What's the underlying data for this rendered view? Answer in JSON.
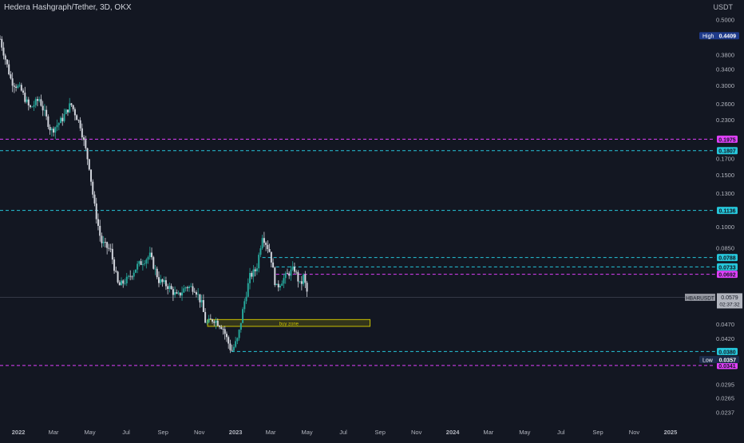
{
  "header": {
    "title": "Hedera Hashgraph/Tether, 3D, OKX",
    "currency": "USDT"
  },
  "colors": {
    "background": "#131722",
    "axis_text": "#b2b5be",
    "bull": "#26a69a",
    "bear": "#d1d4dc",
    "magenta": "#e040fb",
    "cyan": "#26c6da",
    "zone": "#c9c000"
  },
  "chart_data": {
    "type": "candlestick",
    "title": "Hedera Hashgraph/Tether, 3D, OKX",
    "y_scale": "log",
    "ylim": [
      0.0225,
      0.54
    ],
    "y_ticks": [
      0.5,
      0.38,
      0.34,
      0.3,
      0.26,
      0.23,
      0.17,
      0.15,
      0.13,
      0.1,
      0.085,
      0.047,
      0.042,
      0.0295,
      0.0265,
      0.0237
    ],
    "y_tick_labels": [
      "0.5000",
      "0.3800",
      "0.3400",
      "0.3000",
      "0.2600",
      "0.2300",
      "0.1700",
      "0.1500",
      "0.1300",
      "0.1000",
      "0.0850",
      "0.0470",
      "0.0420",
      "0.0295",
      "0.0265",
      "0.0237"
    ],
    "x_ticks": [
      "2022",
      "Mar",
      "May",
      "Jul",
      "Sep",
      "Nov",
      "2023",
      "Mar",
      "May",
      "Jul",
      "Sep",
      "Nov",
      "2024",
      "Mar",
      "May",
      "Jul",
      "Sep",
      "Nov",
      "2025"
    ],
    "x_range": [
      "2021-12-01",
      "2025-02-05"
    ],
    "x_tick_dates": [
      "2022-01-01",
      "2022-03-01",
      "2022-05-01",
      "2022-07-01",
      "2022-09-01",
      "2022-11-01",
      "2023-01-01",
      "2023-03-01",
      "2023-05-01",
      "2023-07-01",
      "2023-09-01",
      "2023-11-01",
      "2024-01-01",
      "2024-03-01",
      "2024-05-01",
      "2024-07-01",
      "2024-09-01",
      "2024-11-01",
      "2025-01-01"
    ],
    "price_path": [
      {
        "date": "2021-12-01",
        "close": 0.43
      },
      {
        "date": "2021-12-20",
        "close": 0.31
      },
      {
        "date": "2022-01-05",
        "close": 0.29
      },
      {
        "date": "2022-01-20",
        "close": 0.25
      },
      {
        "date": "2022-02-05",
        "close": 0.27
      },
      {
        "date": "2022-02-25",
        "close": 0.21
      },
      {
        "date": "2022-03-15",
        "close": 0.23
      },
      {
        "date": "2022-03-30",
        "close": 0.26
      },
      {
        "date": "2022-04-15",
        "close": 0.22
      },
      {
        "date": "2022-04-30",
        "close": 0.16
      },
      {
        "date": "2022-05-08",
        "close": 0.12
      },
      {
        "date": "2022-05-20",
        "close": 0.089
      },
      {
        "date": "2022-06-05",
        "close": 0.083
      },
      {
        "date": "2022-06-18",
        "close": 0.063
      },
      {
        "date": "2022-07-05",
        "close": 0.067
      },
      {
        "date": "2022-07-20",
        "close": 0.074
      },
      {
        "date": "2022-08-10",
        "close": 0.08
      },
      {
        "date": "2022-08-25",
        "close": 0.066
      },
      {
        "date": "2022-09-10",
        "close": 0.063
      },
      {
        "date": "2022-09-25",
        "close": 0.058
      },
      {
        "date": "2022-10-10",
        "close": 0.063
      },
      {
        "date": "2022-10-25",
        "close": 0.062
      },
      {
        "date": "2022-11-05",
        "close": 0.055
      },
      {
        "date": "2022-11-12",
        "close": 0.047
      },
      {
        "date": "2022-11-25",
        "close": 0.049
      },
      {
        "date": "2022-12-10",
        "close": 0.046
      },
      {
        "date": "2022-12-25",
        "close": 0.038
      },
      {
        "date": "2023-01-05",
        "close": 0.042
      },
      {
        "date": "2023-01-15",
        "close": 0.055
      },
      {
        "date": "2023-01-25",
        "close": 0.068
      },
      {
        "date": "2023-02-05",
        "close": 0.072
      },
      {
        "date": "2023-02-15",
        "close": 0.094
      },
      {
        "date": "2023-02-28",
        "close": 0.082
      },
      {
        "date": "2023-03-10",
        "close": 0.062
      },
      {
        "date": "2023-03-20",
        "close": 0.066
      },
      {
        "date": "2023-04-01",
        "close": 0.07
      },
      {
        "date": "2023-04-10",
        "close": 0.072
      },
      {
        "date": "2023-04-20",
        "close": 0.063
      },
      {
        "date": "2023-04-25",
        "close": 0.068
      },
      {
        "date": "2023-05-03",
        "close": 0.0579
      }
    ],
    "lows_extreme": {
      "date": "2022-12-25",
      "low": 0.0357
    },
    "horizontal_levels": [
      {
        "price": 0.1975,
        "color": "magenta",
        "label": "0.1975"
      },
      {
        "price": 0.1807,
        "color": "cyan",
        "label": "0.1807"
      },
      {
        "price": 0.1136,
        "color": "cyan",
        "label": "0.1136"
      },
      {
        "price": 0.0788,
        "color": "cyan",
        "label": "0.0788",
        "from": "2023-02-15"
      },
      {
        "price": 0.0733,
        "color": "cyan",
        "label": "0.0733",
        "from": "2023-03-10"
      },
      {
        "price": 0.0692,
        "color": "magenta",
        "label": "0.0692",
        "from": "2023-03-10"
      },
      {
        "price": 0.038,
        "color": "cyan",
        "label": "0.0380",
        "from": "2022-12-25"
      },
      {
        "price": 0.0341,
        "color": "magenta",
        "label": "0.0341"
      }
    ],
    "markers": [
      {
        "type": "high",
        "label": "High",
        "price": 0.4409,
        "value": "0.4409"
      },
      {
        "type": "low",
        "label": "Low",
        "price": 0.0357,
        "value": "0.0357"
      }
    ],
    "last_price": {
      "symbol": "HBARUSDT",
      "price": 0.0579,
      "value": "0.0579",
      "countdown": "02:37:32"
    },
    "zone": {
      "label": "buy zone",
      "price_top": 0.0487,
      "price_bottom": 0.0462,
      "from": "2022-11-15",
      "to": "2023-08-15"
    }
  }
}
